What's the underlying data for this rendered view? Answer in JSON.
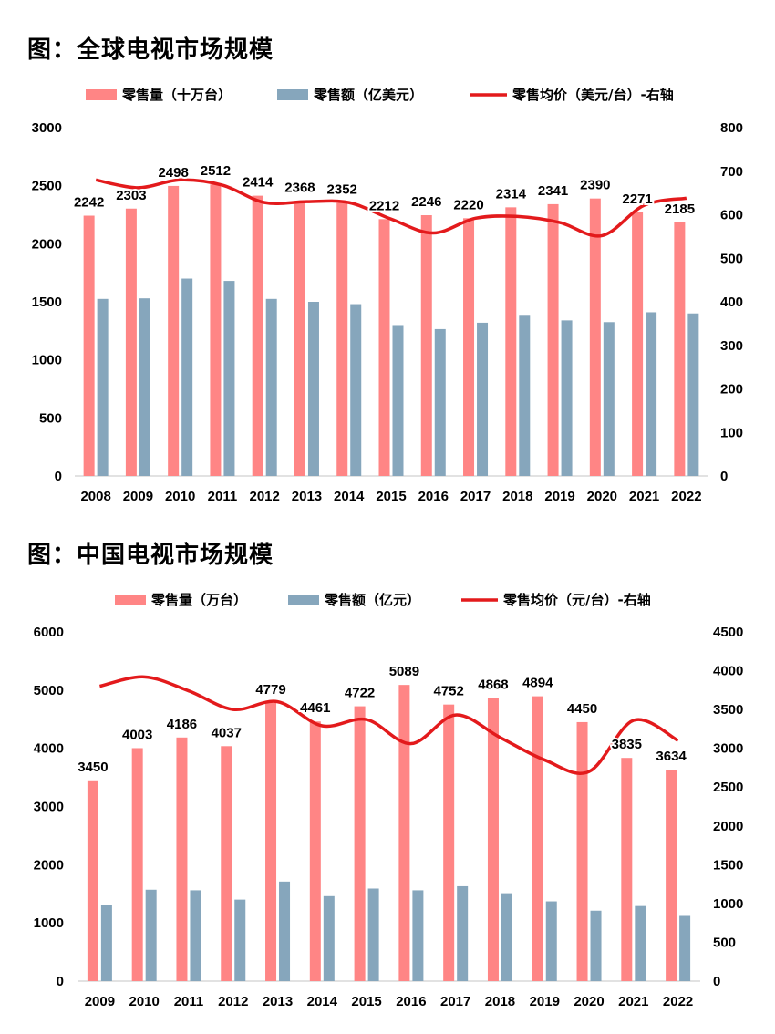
{
  "colors": {
    "volume": "#FF8585",
    "value": "#86A6BC",
    "price": "#E31A1C",
    "axis": "#D9D9D9"
  },
  "chart_data": [
    {
      "type": "bar",
      "title": "图：全球电视市场规模",
      "categories": [
        "2008",
        "2009",
        "2010",
        "2011",
        "2012",
        "2013",
        "2014",
        "2015",
        "2016",
        "2017",
        "2018",
        "2019",
        "2020",
        "2021",
        "2022"
      ],
      "series": [
        {
          "name": "零售量（十万台）",
          "kind": "bar",
          "axis": "left",
          "values": [
            2242,
            2303,
            2498,
            2512,
            2414,
            2368,
            2352,
            2212,
            2246,
            2220,
            2314,
            2341,
            2390,
            2271,
            2185
          ],
          "labels": true
        },
        {
          "name": "零售额（亿美元）",
          "kind": "bar",
          "axis": "left",
          "values": [
            1525,
            1530,
            1700,
            1680,
            1525,
            1500,
            1480,
            1300,
            1265,
            1320,
            1380,
            1340,
            1325,
            1410,
            1400
          ],
          "labels": false
        },
        {
          "name": "零售均价（美元/台）-右轴",
          "kind": "line",
          "axis": "right",
          "values": [
            680,
            662,
            680,
            668,
            628,
            630,
            628,
            590,
            558,
            592,
            596,
            582,
            552,
            622,
            638
          ],
          "labels": false
        }
      ],
      "y_left": {
        "min": 0,
        "max": 3000,
        "ticks": [
          "0",
          "500",
          "1000",
          "1500",
          "2000",
          "2500",
          "3000"
        ]
      },
      "y_right": {
        "min": 0,
        "max": 800,
        "ticks": [
          "0",
          "100",
          "200",
          "300",
          "400",
          "500",
          "600",
          "700",
          "800"
        ]
      }
    },
    {
      "type": "bar",
      "title": "图：中国电视市场规模",
      "categories": [
        "2009",
        "2010",
        "2011",
        "2012",
        "2013",
        "2014",
        "2015",
        "2016",
        "2017",
        "2018",
        "2019",
        "2020",
        "2021",
        "2022"
      ],
      "series": [
        {
          "name": "零售量（万台）",
          "kind": "bar",
          "axis": "left",
          "values": [
            3450,
            4003,
            4186,
            4037,
            4779,
            4461,
            4722,
            5089,
            4752,
            4868,
            4894,
            4450,
            3835,
            3634
          ],
          "labels": true
        },
        {
          "name": "零售额（亿元）",
          "kind": "bar",
          "axis": "left",
          "values": [
            1310,
            1570,
            1560,
            1400,
            1710,
            1460,
            1590,
            1560,
            1630,
            1510,
            1370,
            1210,
            1290,
            1120
          ],
          "labels": false
        },
        {
          "name": "零售均价（元/台）-右轴",
          "kind": "line",
          "axis": "right",
          "values": [
            3800,
            3920,
            3740,
            3500,
            3600,
            3290,
            3370,
            3060,
            3430,
            3140,
            2850,
            2700,
            3360,
            3100
          ],
          "labels": false
        }
      ],
      "y_left": {
        "min": 0,
        "max": 6000,
        "ticks": [
          "0",
          "1000",
          "2000",
          "3000",
          "4000",
          "5000",
          "6000"
        ]
      },
      "y_right": {
        "min": 0,
        "max": 4500,
        "ticks": [
          "0",
          "500",
          "1000",
          "1500",
          "2000",
          "2500",
          "3000",
          "3500",
          "4000",
          "4500"
        ]
      }
    }
  ]
}
